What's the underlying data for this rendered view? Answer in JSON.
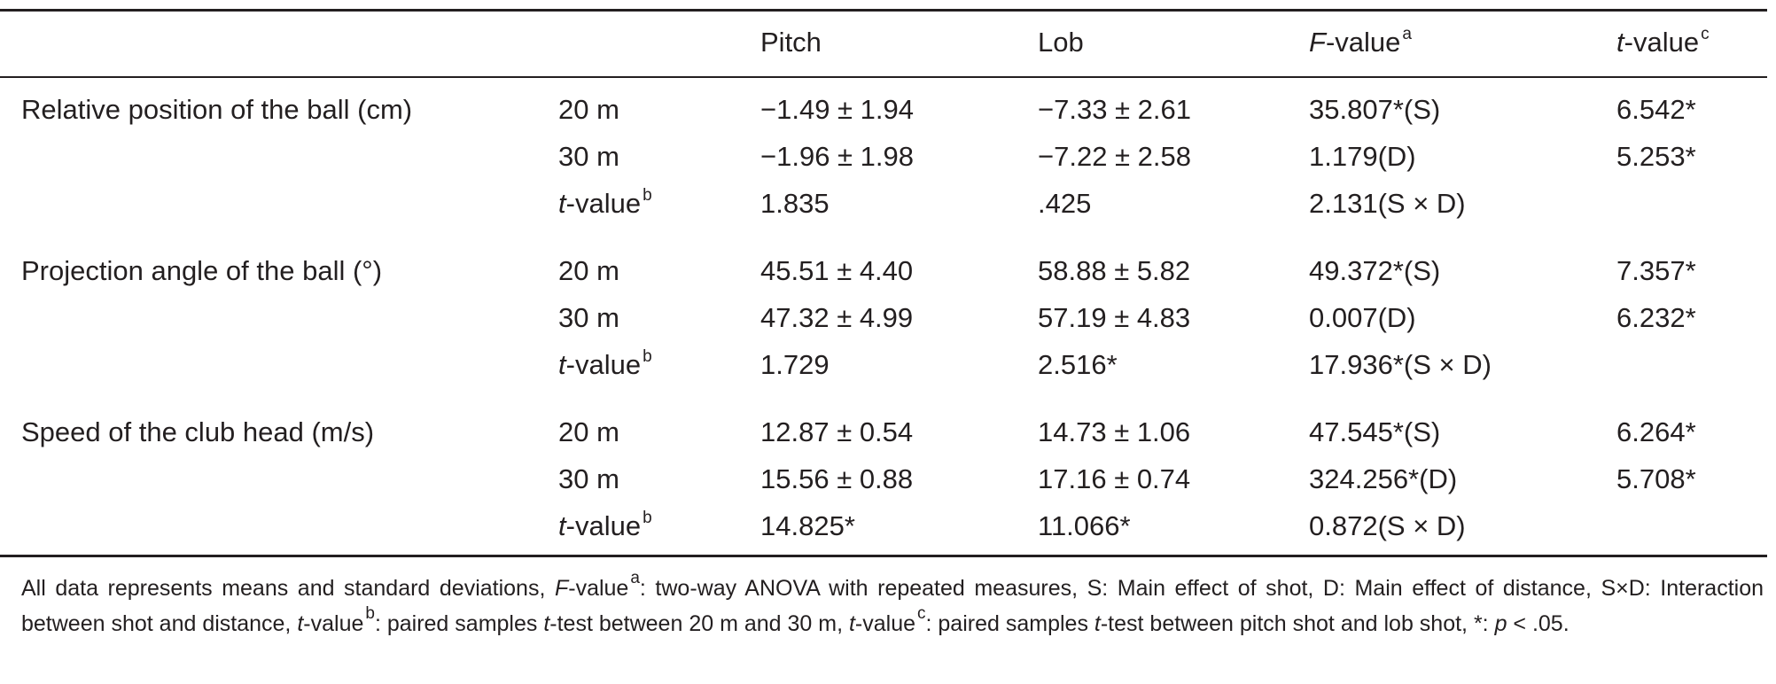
{
  "header": {
    "pitch": "Pitch",
    "lob": "Lob",
    "f_value": {
      "italic": "F",
      "text": "-value",
      "sup": "a"
    },
    "t_value": {
      "italic": "t",
      "text": "-value",
      "sup": "c"
    }
  },
  "rows": [
    {
      "variable": "Relative position of the ball (cm)",
      "distance": "20 m",
      "pitch": "−1.49 ± 1.94",
      "lob": "−7.33 ± 2.61",
      "f": "35.807*(S)",
      "t": "6.542*"
    },
    {
      "variable": "",
      "distance": "30 m",
      "pitch": "−1.96 ± 1.98",
      "lob": "−7.22 ± 2.58",
      "f": "1.179(D)",
      "t": "5.253*"
    },
    {
      "variable": "",
      "distance": "t-valueb",
      "pitch": "1.835",
      "lob": ".425",
      "f": "2.131(S × D)",
      "t": ""
    },
    {
      "variable": "Projection angle of the ball (°)",
      "distance": "20 m",
      "pitch": "45.51 ± 4.40",
      "lob": "58.88 ± 5.82",
      "f": "49.372*(S)",
      "t": "7.357*"
    },
    {
      "variable": "",
      "distance": "30 m",
      "pitch": "47.32 ± 4.99",
      "lob": "57.19 ± 4.83",
      "f": "0.007(D)",
      "t": "6.232*"
    },
    {
      "variable": "",
      "distance": "t-valueb",
      "pitch": "1.729",
      "lob": "2.516*",
      "f": "17.936*(S × D)",
      "t": ""
    },
    {
      "variable": "Speed of the club head (m/s)",
      "distance": "20 m",
      "pitch": "12.87 ± 0.54",
      "lob": "14.73 ± 1.06",
      "f": "47.545*(S)",
      "t": "6.264*"
    },
    {
      "variable": "",
      "distance": "30 m",
      "pitch": "15.56 ± 0.88",
      "lob": "17.16 ± 0.74",
      "f": "324.256*(D)",
      "t": "5.708*"
    },
    {
      "variable": "",
      "distance": "t-valueb",
      "pitch": "14.825*",
      "lob": "11.066*",
      "f": "0.872(S × D)",
      "t": ""
    }
  ],
  "t_value_label": {
    "italic": "t",
    "text": "-value",
    "sup": "b"
  },
  "footer": {
    "p1": "All data represents means and standard deviations, ",
    "f_italic": "F",
    "f_text": "-value",
    "f_sup": "a",
    "p2": ": two-way ANOVA with repeated measures, S: Main effect of shot, D: Main effect of distance, S×D: Interaction between shot and distance, ",
    "tb_italic": "t",
    "tb_text": "-value",
    "tb_sup": "b",
    "p3": ": paired samples ",
    "p3_t": "t",
    "p3b": "-test between 20 m and 30 m, ",
    "tc_italic": "t",
    "tc_text": "-value",
    "tc_sup": "c",
    "p4": ": paired samples ",
    "p4_t": "t",
    "p4b": "-test between pitch shot and lob shot, *: ",
    "p_italic": "p",
    "p5": " < .05."
  }
}
